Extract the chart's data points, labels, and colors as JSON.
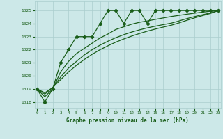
{
  "series1": {
    "x": [
      0,
      1,
      2,
      3,
      4,
      5,
      6,
      7,
      8,
      9,
      10,
      11,
      12,
      13,
      14,
      15,
      16,
      17,
      18,
      19,
      20,
      21,
      22,
      23
    ],
    "y": [
      1019,
      1018,
      1019,
      1021,
      1022,
      1023,
      1023,
      1023,
      1024,
      1025,
      1025,
      1024,
      1025,
      1025,
      1024,
      1025,
      1025,
      1025,
      1025,
      1025,
      1025,
      1025,
      1025,
      1025
    ],
    "color": "#1a5e1a",
    "marker": "D",
    "lw": 0.9,
    "ms": 2.2
  },
  "series2": {
    "x": [
      0,
      1,
      2,
      3,
      4,
      5,
      6,
      7,
      8,
      9,
      10,
      11,
      12,
      13,
      14,
      15,
      16,
      17,
      18,
      19,
      20,
      21,
      22,
      23
    ],
    "y": [
      1019.0,
      1018.4,
      1019.0,
      1020.3,
      1021.1,
      1021.7,
      1022.1,
      1022.5,
      1022.9,
      1023.2,
      1023.55,
      1023.75,
      1023.95,
      1024.1,
      1024.2,
      1024.32,
      1024.43,
      1024.54,
      1024.63,
      1024.72,
      1024.8,
      1024.88,
      1024.95,
      1025.0
    ],
    "color": "#1a5e1a",
    "lw": 0.9
  },
  "series3": {
    "x": [
      0,
      1,
      2,
      3,
      4,
      5,
      6,
      7,
      8,
      9,
      10,
      11,
      12,
      13,
      14,
      15,
      16,
      17,
      18,
      19,
      20,
      21,
      22,
      23
    ],
    "y": [
      1019.0,
      1018.6,
      1019.1,
      1019.9,
      1020.6,
      1021.1,
      1021.6,
      1022.0,
      1022.35,
      1022.65,
      1022.92,
      1023.15,
      1023.35,
      1023.52,
      1023.67,
      1023.8,
      1023.92,
      1024.03,
      1024.2,
      1024.38,
      1024.54,
      1024.68,
      1024.82,
      1025.0
    ],
    "color": "#1a5e1a",
    "lw": 0.9
  },
  "series4": {
    "x": [
      0,
      1,
      2,
      3,
      4,
      5,
      6,
      7,
      8,
      9,
      10,
      11,
      12,
      13,
      14,
      15,
      16,
      17,
      18,
      19,
      20,
      21,
      22,
      23
    ],
    "y": [
      1019.0,
      1018.7,
      1019.1,
      1019.7,
      1020.3,
      1020.8,
      1021.25,
      1021.65,
      1022.0,
      1022.3,
      1022.58,
      1022.82,
      1023.04,
      1023.24,
      1023.42,
      1023.58,
      1023.73,
      1023.87,
      1024.05,
      1024.25,
      1024.44,
      1024.61,
      1024.78,
      1025.0
    ],
    "color": "#1a5e1a",
    "lw": 0.9
  },
  "ylim": [
    1017.5,
    1025.7
  ],
  "yticks": [
    1018,
    1019,
    1020,
    1021,
    1022,
    1023,
    1024,
    1025
  ],
  "xticks": [
    0,
    1,
    2,
    3,
    4,
    5,
    6,
    7,
    8,
    9,
    10,
    11,
    12,
    13,
    14,
    15,
    16,
    17,
    18,
    19,
    20,
    21,
    22,
    23
  ],
  "xlabel": "Graphe pression niveau de la mer (hPa)",
  "bg_color": "#cce8e8",
  "grid_color": "#aacece",
  "line_color": "#1a5e1a",
  "tick_color": "#1a5e1a",
  "label_color": "#1a5e1a"
}
